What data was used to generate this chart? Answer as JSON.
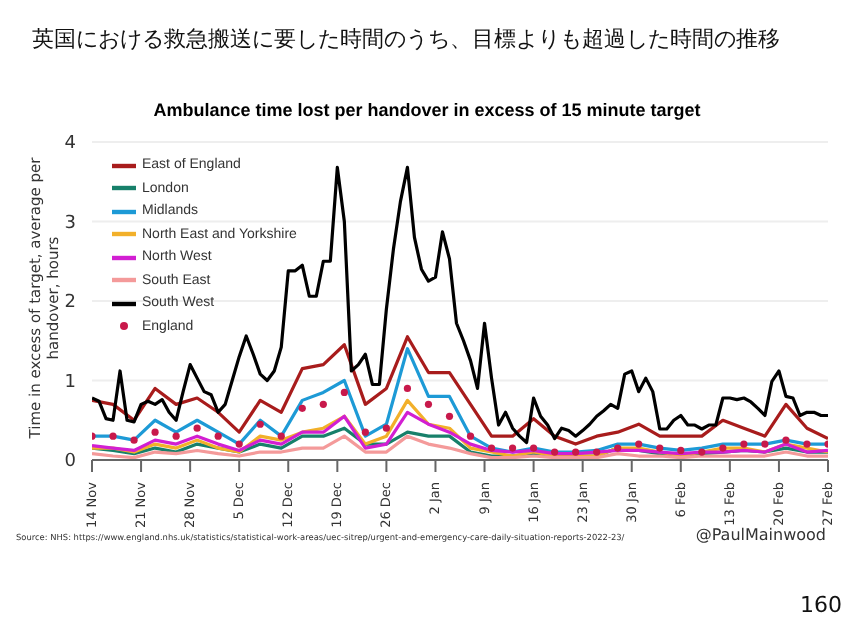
{
  "chart_data": {
    "type": "line",
    "title": "英国における救急搬送に要した時間のうち、目標よりも超過した時間の推移",
    "subtitle": "Ambulance time lost per handover in excess of 15 minute target",
    "ylabel": "Time in excess of target, average per handover, hours",
    "annotations": [
      "Source: NHS: https://www.england.nhs.uk/statistics/statistical-work-areas/uec-sitrep/urgent-and-emergency-care-daily-situation-reports-2022-23/",
      "@PaulMainwood",
      "160"
    ],
    "x": [
      "2022-11-14",
      "2022-11-17",
      "2022-11-20",
      "2022-11-23",
      "2022-11-26",
      "2022-11-29",
      "2022-12-02",
      "2022-12-05",
      "2022-12-08",
      "2022-12-11",
      "2022-12-14",
      "2022-12-17",
      "2022-12-20",
      "2022-12-23",
      "2022-12-26",
      "2022-12-29",
      "2023-01-01",
      "2023-01-04",
      "2023-01-07",
      "2023-01-10",
      "2023-01-13",
      "2023-01-16",
      "2023-01-19",
      "2023-01-22",
      "2023-01-25",
      "2023-01-28",
      "2023-01-31",
      "2023-02-03",
      "2023-02-06",
      "2023-02-09",
      "2023-02-12",
      "2023-02-15",
      "2023-02-18",
      "2023-02-21",
      "2023-02-24",
      "2023-02-27"
    ],
    "series": [
      {
        "name": "East of England",
        "color": "#a81c1c",
        "values": [
          0.75,
          0.7,
          0.5,
          0.9,
          0.7,
          0.78,
          0.6,
          0.35,
          0.75,
          0.6,
          1.15,
          1.2,
          1.45,
          0.7,
          0.9,
          1.55,
          1.1,
          1.1,
          0.7,
          0.3,
          0.3,
          0.52,
          0.3,
          0.2,
          0.3,
          0.35,
          0.45,
          0.3,
          0.3,
          0.3,
          0.5,
          0.4,
          0.3,
          0.7,
          0.4,
          0.27
        ]
      },
      {
        "name": "London",
        "color": "#17806a",
        "values": [
          0.15,
          0.12,
          0.08,
          0.15,
          0.1,
          0.2,
          0.15,
          0.1,
          0.2,
          0.15,
          0.3,
          0.3,
          0.4,
          0.2,
          0.2,
          0.35,
          0.3,
          0.3,
          0.1,
          0.05,
          0.05,
          0.08,
          0.05,
          0.05,
          0.05,
          0.15,
          0.12,
          0.08,
          0.05,
          0.08,
          0.1,
          0.12,
          0.1,
          0.15,
          0.1,
          0.1
        ]
      },
      {
        "name": "Midlands",
        "color": "#1d9ad6",
        "values": [
          0.3,
          0.3,
          0.25,
          0.5,
          0.35,
          0.5,
          0.35,
          0.2,
          0.5,
          0.3,
          0.75,
          0.85,
          1.0,
          0.3,
          0.45,
          1.4,
          0.8,
          0.8,
          0.3,
          0.15,
          0.1,
          0.15,
          0.1,
          0.1,
          0.12,
          0.2,
          0.2,
          0.15,
          0.12,
          0.15,
          0.2,
          0.2,
          0.2,
          0.25,
          0.2,
          0.2
        ]
      },
      {
        "name": "North East and Yorkshire",
        "color": "#f2b02a",
        "values": [
          0.15,
          0.15,
          0.1,
          0.2,
          0.15,
          0.25,
          0.15,
          0.1,
          0.3,
          0.25,
          0.35,
          0.4,
          0.55,
          0.2,
          0.3,
          0.75,
          0.45,
          0.4,
          0.15,
          0.1,
          0.05,
          0.1,
          0.05,
          0.05,
          0.05,
          0.15,
          0.15,
          0.1,
          0.05,
          0.1,
          0.15,
          0.15,
          0.1,
          0.2,
          0.15,
          0.1
        ]
      },
      {
        "name": "North West",
        "color": "#d21fd2",
        "values": [
          0.18,
          0.15,
          0.12,
          0.25,
          0.2,
          0.3,
          0.2,
          0.12,
          0.25,
          0.2,
          0.35,
          0.35,
          0.55,
          0.15,
          0.2,
          0.6,
          0.45,
          0.35,
          0.2,
          0.12,
          0.1,
          0.12,
          0.08,
          0.08,
          0.1,
          0.12,
          0.12,
          0.1,
          0.08,
          0.1,
          0.1,
          0.12,
          0.1,
          0.2,
          0.1,
          0.12
        ]
      },
      {
        "name": "South East",
        "color": "#f49a9a",
        "values": [
          0.08,
          0.05,
          0.03,
          0.1,
          0.08,
          0.12,
          0.08,
          0.05,
          0.1,
          0.1,
          0.15,
          0.15,
          0.3,
          0.1,
          0.1,
          0.3,
          0.2,
          0.15,
          0.08,
          0.03,
          0.03,
          0.05,
          0.03,
          0.03,
          0.03,
          0.08,
          0.05,
          0.05,
          0.03,
          0.05,
          0.05,
          0.05,
          0.05,
          0.1,
          0.05,
          0.05
        ]
      },
      {
        "name": "South West",
        "color": "#000000",
        "x": [
          "2022-11-14",
          "2022-11-15",
          "2022-11-16",
          "2022-11-17",
          "2022-11-18",
          "2022-11-19",
          "2022-11-20",
          "2022-11-21",
          "2022-11-22",
          "2022-11-23",
          "2022-11-24",
          "2022-11-25",
          "2022-11-26",
          "2022-11-27",
          "2022-11-28",
          "2022-11-29",
          "2022-11-30",
          "2022-12-01",
          "2022-12-02",
          "2022-12-03",
          "2022-12-04",
          "2022-12-05",
          "2022-12-06",
          "2022-12-07",
          "2022-12-08",
          "2022-12-09",
          "2022-12-10",
          "2022-12-11",
          "2022-12-12",
          "2022-12-13",
          "2022-12-14",
          "2022-12-15",
          "2022-12-16",
          "2022-12-17",
          "2022-12-18",
          "2022-12-19",
          "2022-12-20",
          "2022-12-21",
          "2022-12-22",
          "2022-12-23",
          "2022-12-24",
          "2022-12-25",
          "2022-12-26",
          "2022-12-27",
          "2022-12-28",
          "2022-12-29",
          "2022-12-30",
          "2022-12-31",
          "2023-01-01",
          "2023-01-02",
          "2023-01-03",
          "2023-01-04",
          "2023-01-05",
          "2023-01-06",
          "2023-01-07",
          "2023-01-08",
          "2023-01-09",
          "2023-01-10",
          "2023-01-11",
          "2023-01-12",
          "2023-01-13",
          "2023-01-14",
          "2023-01-15",
          "2023-01-16",
          "2023-01-17",
          "2023-01-18",
          "2023-01-19",
          "2023-01-20",
          "2023-01-21",
          "2023-01-22",
          "2023-01-23",
          "2023-01-24",
          "2023-01-25",
          "2023-01-26",
          "2023-01-27",
          "2023-01-28",
          "2023-01-29",
          "2023-01-30",
          "2023-01-31",
          "2023-02-01",
          "2023-02-02",
          "2023-02-03",
          "2023-02-04",
          "2023-02-05",
          "2023-02-06",
          "2023-02-07",
          "2023-02-08",
          "2023-02-09",
          "2023-02-10",
          "2023-02-11",
          "2023-02-12",
          "2023-02-13",
          "2023-02-14",
          "2023-02-15",
          "2023-02-16",
          "2023-02-17",
          "2023-02-18",
          "2023-02-19",
          "2023-02-20",
          "2023-02-21",
          "2023-02-22",
          "2023-02-23",
          "2023-02-24",
          "2023-02-25",
          "2023-02-26",
          "2023-02-27"
        ],
        "values": [
          0.78,
          0.74,
          0.52,
          0.5,
          1.12,
          0.5,
          0.48,
          0.7,
          0.74,
          0.7,
          0.76,
          0.6,
          0.5,
          0.86,
          1.2,
          1.03,
          0.86,
          0.82,
          0.6,
          0.7,
          1.0,
          1.3,
          1.56,
          1.33,
          1.08,
          1.0,
          1.12,
          1.42,
          2.38,
          2.38,
          2.45,
          2.06,
          2.06,
          2.5,
          2.5,
          3.68,
          3.0,
          1.12,
          1.2,
          1.33,
          0.95,
          0.95,
          1.9,
          2.65,
          3.25,
          3.68,
          2.8,
          2.4,
          2.25,
          2.3,
          2.87,
          2.53,
          1.72,
          1.5,
          1.25,
          0.9,
          1.72,
          1.03,
          0.44,
          0.6,
          0.4,
          0.3,
          0.22,
          0.78,
          0.55,
          0.44,
          0.27,
          0.4,
          0.37,
          0.3,
          0.37,
          0.45,
          0.55,
          0.62,
          0.7,
          0.65,
          1.08,
          1.12,
          0.86,
          1.03,
          0.86,
          0.39,
          0.39,
          0.5,
          0.56,
          0.44,
          0.44,
          0.39,
          0.44,
          0.44,
          0.78,
          0.78,
          0.76,
          0.78,
          0.73,
          0.65,
          0.56,
          0.99,
          1.12,
          0.8,
          0.78,
          0.56,
          0.6,
          0.6,
          0.56,
          0.56
        ]
      },
      {
        "name": "England",
        "type": "scatter",
        "color": "#c8194b",
        "values": [
          0.3,
          0.3,
          0.25,
          0.35,
          0.3,
          0.4,
          0.3,
          0.2,
          0.45,
          0.3,
          0.65,
          0.7,
          0.85,
          0.35,
          0.4,
          0.9,
          0.7,
          0.55,
          0.3,
          0.15,
          0.15,
          0.15,
          0.1,
          0.1,
          0.1,
          0.15,
          0.2,
          0.15,
          0.12,
          0.1,
          0.15,
          0.2,
          0.2,
          0.25,
          0.2,
          0.2
        ]
      }
    ],
    "xlim": [
      "2022-11-14",
      "2023-02-27"
    ],
    "xticks": [
      {
        "value": "2022-11-14",
        "label": "14 Nov"
      },
      {
        "value": "2022-11-21",
        "label": "21 Nov"
      },
      {
        "value": "2022-11-28",
        "label": "28 Nov"
      },
      {
        "value": "2022-12-05",
        "label": "5 Dec"
      },
      {
        "value": "2022-12-12",
        "label": "12 Dec"
      },
      {
        "value": "2022-12-19",
        "label": "19 Dec"
      },
      {
        "value": "2022-12-26",
        "label": "26 Dec"
      },
      {
        "value": "2023-01-02",
        "label": "2 Jan"
      },
      {
        "value": "2023-01-09",
        "label": "9 Jan"
      },
      {
        "value": "2023-01-16",
        "label": "16 Jan"
      },
      {
        "value": "2023-01-23",
        "label": "23 Jan"
      },
      {
        "value": "2023-01-30",
        "label": "30 Jan"
      },
      {
        "value": "2023-02-06",
        "label": "6 Feb"
      },
      {
        "value": "2023-02-13",
        "label": "13 Feb"
      },
      {
        "value": "2023-02-20",
        "label": "20 Feb"
      },
      {
        "value": "2023-02-27",
        "label": "27 Feb"
      }
    ],
    "ylim": [
      0,
      4
    ],
    "yticks": [
      0,
      1,
      2,
      3,
      4
    ],
    "grid": "y",
    "legend": "top left",
    "line_style": "solid"
  }
}
